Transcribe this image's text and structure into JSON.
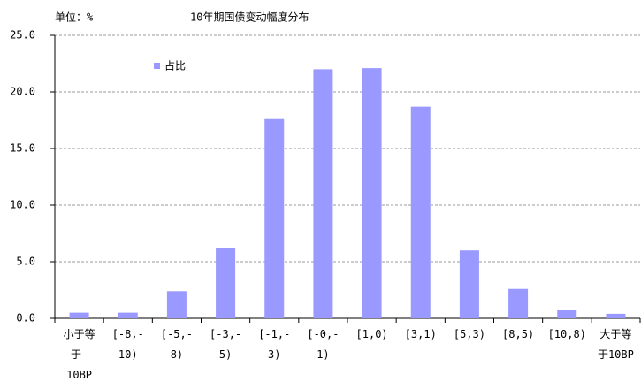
{
  "chart_data": {
    "type": "bar",
    "title": "10年期国债变动幅度分布",
    "unit_label": "单位：%",
    "categories": [
      "小于等于-10BP",
      "[-8,-10)",
      "[-5,-8)",
      "[-3,-5)",
      "[-1,-3)",
      "[-0,-1)",
      "[1,0)",
      "[3,1)",
      "[5,3)",
      "[8,5)",
      "[10,8)",
      "大于等于10BP"
    ],
    "series": [
      {
        "name": "占比",
        "color": "#9999ff",
        "values": [
          0.5,
          0.5,
          2.4,
          6.2,
          17.6,
          22.0,
          22.1,
          18.7,
          6.0,
          2.6,
          0.7,
          0.4
        ]
      }
    ],
    "ylim": [
      0,
      25
    ],
    "yticks": [
      {
        "value": 0,
        "label": "0.0"
      },
      {
        "value": 5,
        "label": "5.0"
      },
      {
        "value": 10,
        "label": "10.0"
      },
      {
        "value": 15,
        "label": "15.0"
      },
      {
        "value": 20,
        "label": "20.0"
      },
      {
        "value": 25,
        "label": "25.0"
      }
    ],
    "grid": true,
    "legend": "top-left"
  }
}
